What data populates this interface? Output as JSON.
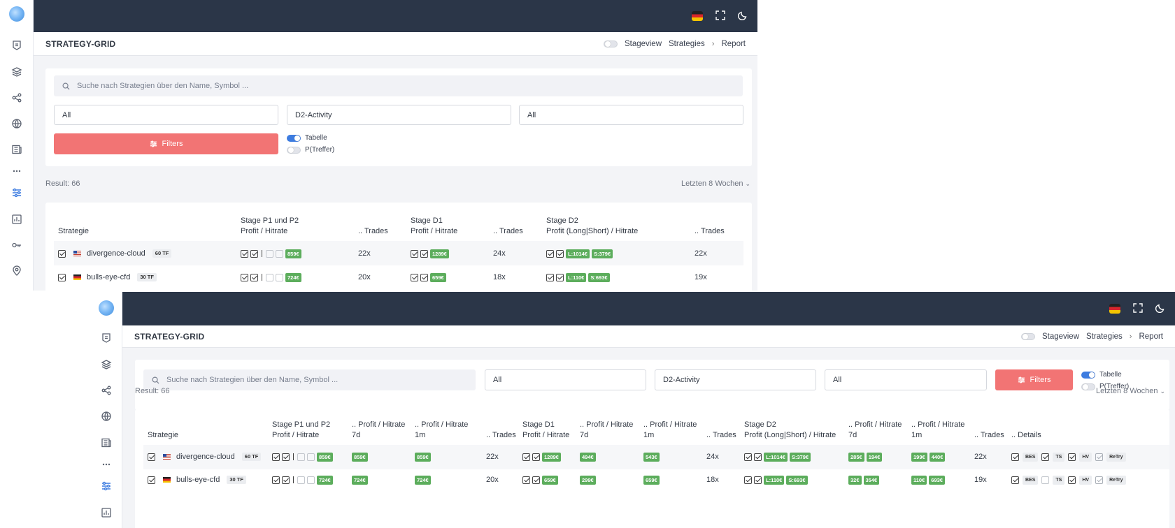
{
  "app": {
    "page_title": "STRATEGY-GRID",
    "stageview_label": "Stageview",
    "breadcrumb": [
      "Strategies",
      "Report"
    ],
    "topbar_icons": [
      "german-flag-icon",
      "fullscreen-icon",
      "dark-mode-icon"
    ]
  },
  "sidebar": {
    "items": [
      "logo",
      "shield-icon",
      "layers-icon",
      "share-icon",
      "globe-icon",
      "newspaper-icon",
      "more-icon",
      "sliders-icon",
      "chart-icon",
      "key-icon",
      "location-icon"
    ],
    "active": "sliders-icon"
  },
  "filters": {
    "search_placeholder": "Suche nach Strategien über den Name, Symbol ...",
    "select1": "All",
    "select2": "D2-Activity",
    "select3": "All",
    "filters_button": "Filters",
    "toggle_table": "Tabelle",
    "toggle_prob": "P(Treffer)"
  },
  "result": {
    "label": "Result: 66",
    "period": "Letzten 8 Wochen"
  },
  "table_compact": {
    "headers": {
      "strategie": "Strategie",
      "p12_1": "Stage P1 und P2",
      "p12_2": "Profit / Hitrate",
      "trades1": ".. Trades",
      "d1_1": "Stage D1",
      "d1_2": "Profit / Hitrate",
      "trades2": ".. Trades",
      "d2_1": "Stage D2",
      "d2_2": "Profit (Long|Short) / Hitrate",
      "trades3": ".. Trades"
    }
  },
  "table_wide": {
    "headers": {
      "strategie": "Strategie",
      "p12_1": "Stage P1 und P2",
      "p12_2": "Profit / Hitrate",
      "p7_1": ".. Profit / Hitrate",
      "p7_2": "7d",
      "p1m_1": ".. Profit / Hitrate",
      "p1m_2": "1m",
      "trades1": ".. Trades",
      "d1_1": "Stage D1",
      "d1_2": "Profit / Hitrate",
      "d17_1": ".. Profit / Hitrate",
      "d17_2": "7d",
      "d1m_1": ".. Profit / Hitrate",
      "d1m_2": "1m",
      "trades2": ".. Trades",
      "d2_1": "Stage D2",
      "d2_2": "Profit (Long|Short) / Hitrate",
      "d27_1": ".. Profit / Hitrate",
      "d27_2": "7d",
      "d2m_1": ".. Profit / Hitrate",
      "d2m_2": "1m",
      "trades3": ".. Trades",
      "details": ".. Details"
    }
  },
  "rows": [
    {
      "name": "divergence-cloud",
      "flag": "us",
      "tf": "60 TF",
      "p12": "859€",
      "p12_7d": "859€",
      "p12_1m": "859€",
      "trades1": "22x",
      "d1": "1289€",
      "d1_7d": "494€",
      "d1_1m": "543€",
      "trades2": "24x",
      "d2_long": "L:1014€",
      "d2_short": "S:379€",
      "d2_7d_a": "285€",
      "d2_7d_b": "194€",
      "d2_1m_a": "199€",
      "d2_1m_b": "440€",
      "trades3": "22x",
      "details": [
        "BES",
        "TS",
        "HV",
        "ReTry"
      ]
    },
    {
      "name": "bulls-eye-cfd",
      "flag": "de",
      "tf": "30 TF",
      "p12": "724€",
      "p12_7d": "724€",
      "p12_1m": "724€",
      "trades1": "20x",
      "d1": "659€",
      "d1_7d": "299€",
      "d1_1m": "659€",
      "trades2": "18x",
      "d2_long": "L:110€",
      "d2_short": "S:693€",
      "d2_7d_a": "32€",
      "d2_7d_b": "354€",
      "d2_1m_a": "110€",
      "d2_1m_b": "693€",
      "trades3": "19x",
      "details": [
        "BES",
        "TS",
        "HV",
        "ReTry"
      ]
    }
  ],
  "colors": {
    "topbar": "#2b3648",
    "accent_red": "#f27474",
    "toggle_blue": "#3d7ce0",
    "pill_green": "#5cad5c"
  }
}
